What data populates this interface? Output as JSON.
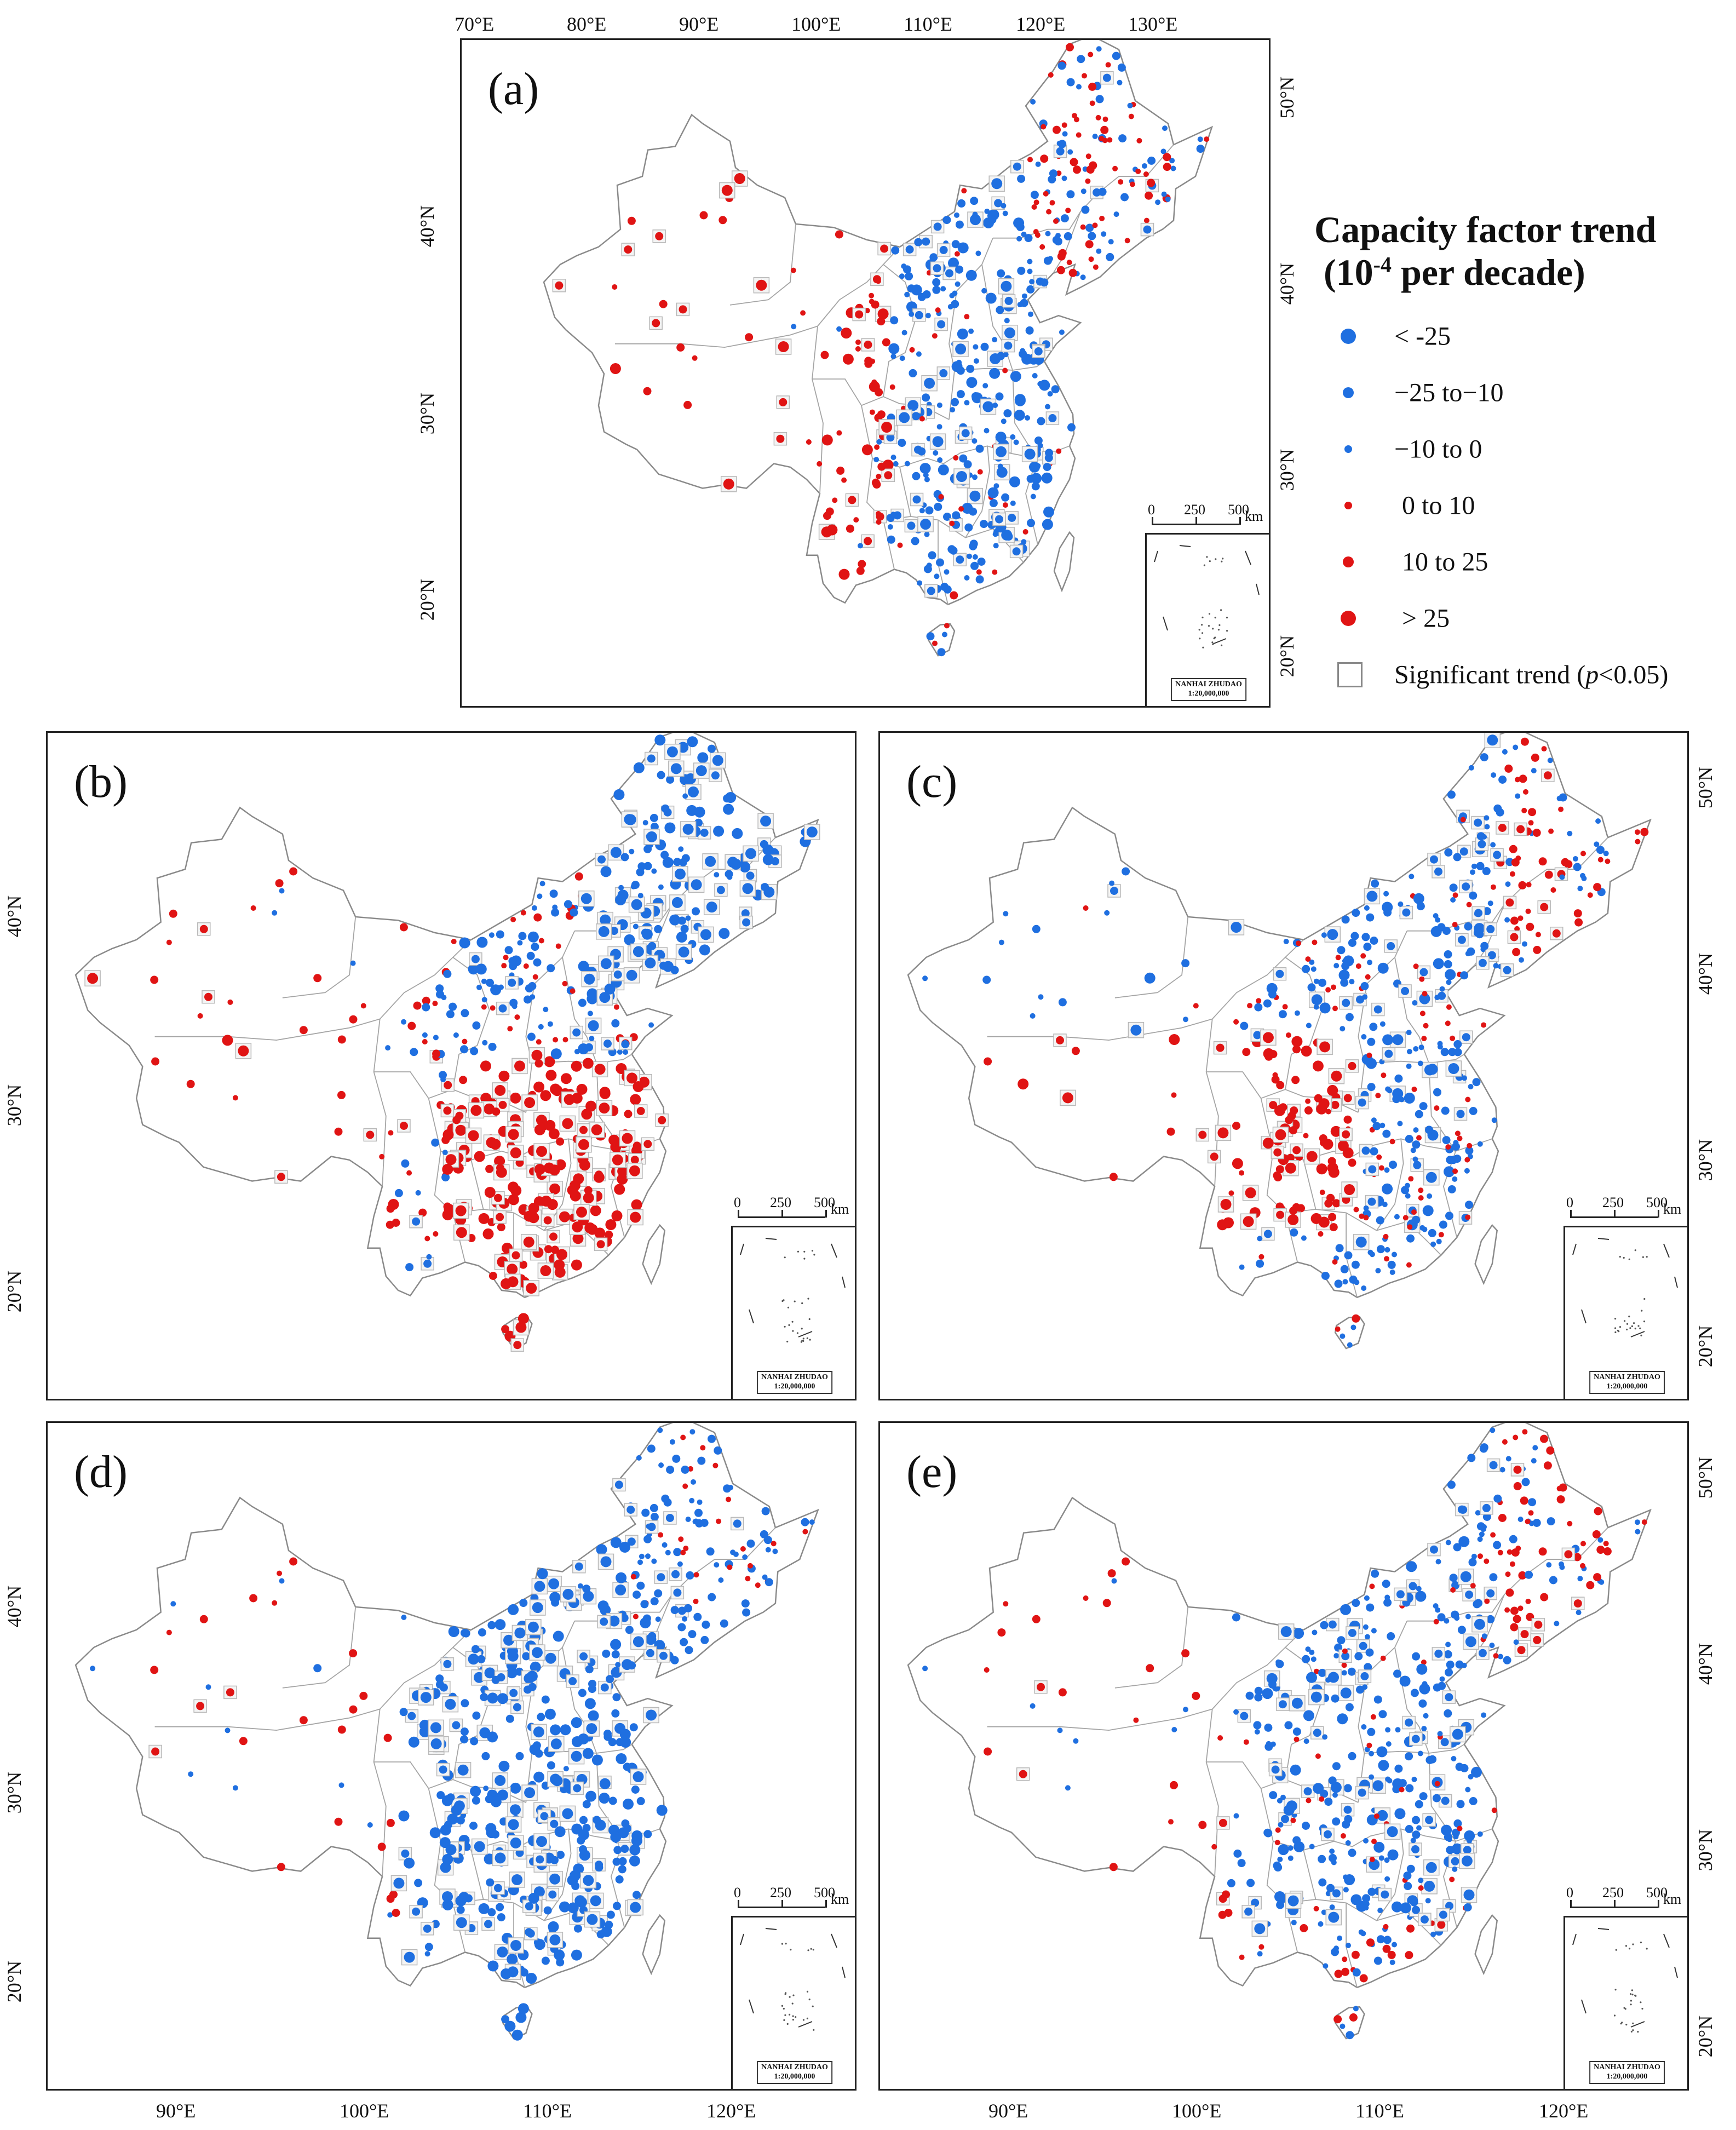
{
  "legend": {
    "title_line1": "Capacity factor trend",
    "title_unit_prefix": "(10",
    "title_exponent": "-4",
    "title_unit_suffix": " per decade)",
    "classes": [
      {
        "label": "< -25",
        "color": "#1f6fe0",
        "size": "large"
      },
      {
        "label": "−25 to−10",
        "color": "#1f6fe0",
        "size": "medium"
      },
      {
        "label": "−10 to 0",
        "color": "#1f6fe0",
        "size": "small"
      },
      {
        "label": "0 to 10",
        "color": "#e01414",
        "size": "small"
      },
      {
        "label": "10 to 25",
        "color": "#e01414",
        "size": "medium"
      },
      {
        "label": "> 25",
        "color": "#e01414",
        "size": "large"
      }
    ],
    "significance_label": "Significant trend (",
    "significance_p": "p",
    "significance_suffix": "<0.05)"
  },
  "colors": {
    "negative": "#1f6fe0",
    "positive": "#e01414",
    "boundary": "#8a8a8a"
  },
  "scalebar": {
    "labels": [
      "0",
      "250",
      "500"
    ],
    "unit": "km"
  },
  "inset": {
    "title": "NANHAI ZHUDAO",
    "scale": "1:20,000,000"
  },
  "panels": [
    {
      "id": "a",
      "label": "(a)",
      "predominant": "mixed-blue-east",
      "top_ticks": [
        "70°E",
        "80°E",
        "90°E",
        "100°E",
        "110°E",
        "120°E",
        "130°E"
      ],
      "left_ticks": [
        "40°N",
        "30°N",
        "20°N"
      ],
      "right_ticks": [
        "50°N",
        "40°N",
        "30°N",
        "20°N"
      ]
    },
    {
      "id": "b",
      "label": "(b)",
      "predominant": "red-south",
      "left_ticks": [
        "40°N",
        "30°N",
        "20°N"
      ]
    },
    {
      "id": "c",
      "label": "(c)",
      "predominant": "mixed",
      "right_ticks": [
        "50°N",
        "40°N",
        "30°N",
        "20°N"
      ]
    },
    {
      "id": "d",
      "label": "(d)",
      "predominant": "blue",
      "left_ticks": [
        "40°N",
        "30°N",
        "20°N"
      ],
      "bottom_ticks": [
        "90°E",
        "100°E",
        "110°E",
        "120°E"
      ]
    },
    {
      "id": "e",
      "label": "(e)",
      "predominant": "blue-east",
      "right_ticks": [
        "50°N",
        "40°N",
        "30°N",
        "20°N"
      ],
      "bottom_ticks": [
        "90°E",
        "100°E",
        "110°E",
        "120°E"
      ]
    }
  ]
}
